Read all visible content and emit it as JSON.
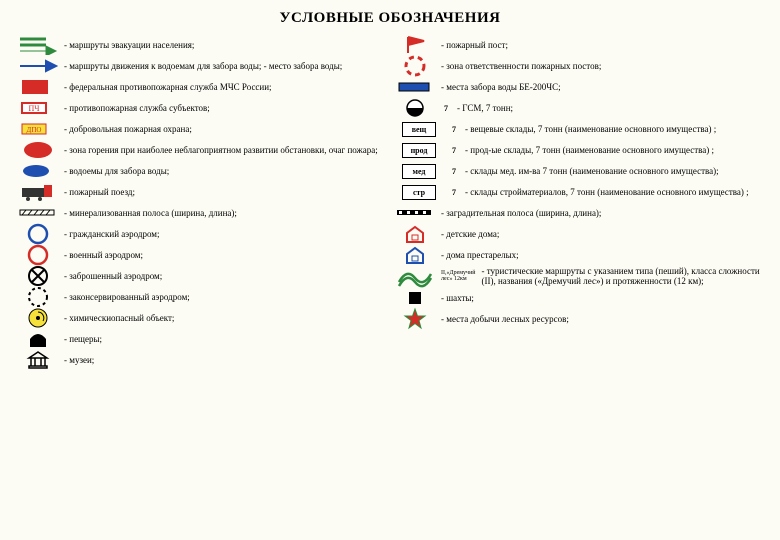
{
  "title": "УСЛОВНЫЕ ОБОЗНАЧЕНИЯ",
  "colors": {
    "red": "#d62c27",
    "green": "#2e8b3d",
    "blue": "#1e4fb0",
    "yellow": "#f6e13b",
    "orange": "#e07b1f",
    "black": "#000",
    "bg": "#fcfcf4",
    "white": "#fff"
  },
  "left": [
    {
      "sym": "evac-arrow",
      "text": "- маршруты эвакуации населения;"
    },
    {
      "sym": "water-arrow",
      "text": "- маршруты движения к водоемам для забора воды;\n- место забора воды;"
    },
    {
      "sym": "fps-box",
      "text": "- федеральная противопожарная служба МЧС России;"
    },
    {
      "sym": "pch-box",
      "text": "- противопожарная служба субъектов;"
    },
    {
      "sym": "dpo-box",
      "text": "- добровольная пожарная охрана;"
    },
    {
      "sym": "fire-zone",
      "text": "- зона горения при наиболее неблагоприятном развитии обстановки, очаг пожара;"
    },
    {
      "sym": "pond",
      "text": "- водоемы для забора воды;"
    },
    {
      "sym": "train",
      "text": "- пожарный поезд;"
    },
    {
      "sym": "mineral",
      "text": "- минерализованная полоса (ширина, длина);"
    },
    {
      "sym": "circle-blue",
      "text": "- гражданский аэродром;"
    },
    {
      "sym": "circle-red",
      "text": "- военный аэродром;"
    },
    {
      "sym": "circle-cross",
      "text": "- заброшенный аэродром;"
    },
    {
      "sym": "circle-dashed",
      "text": "- законсервированный аэродром;"
    },
    {
      "sym": "chem",
      "text": "- химическиопасный объект;"
    },
    {
      "sym": "cave",
      "text": "- пещеры;"
    },
    {
      "sym": "museum",
      "text": "- музеи;"
    }
  ],
  "right": [
    {
      "sym": "fire-post",
      "text": "- пожарный пост;"
    },
    {
      "sym": "resp-zone",
      "text": "- зона ответственности пожарных постов;"
    },
    {
      "sym": "be200",
      "text": "- места забора воды БЕ-200ЧС;"
    },
    {
      "sym": "gsm",
      "tagn": "7",
      "text": "- ГСМ, 7 тонн;"
    },
    {
      "sym": "tag",
      "tagv": "вещ",
      "tagn": "7",
      "text": "- вещевые склады, 7 тонн (наименование основного имущества) ;"
    },
    {
      "sym": "tag",
      "tagv": "прод",
      "tagn": "7",
      "text": "- прод-ые склады, 7 тонн (наименование основного имущества) ;"
    },
    {
      "sym": "tag",
      "tagv": "мед",
      "tagn": "7",
      "text": "- склады мед. им-ва 7 тонн (наименование основного имущества);"
    },
    {
      "sym": "tag",
      "tagv": "стр",
      "tagn": "7",
      "text": "- склады стройматериалов, 7 тонн (наименование основного имущества) ;"
    },
    {
      "sym": "barrier",
      "text": "- заградительная полоса (ширина, длина);"
    },
    {
      "sym": "house-red",
      "text": "- детские дома;"
    },
    {
      "sym": "house-blue",
      "text": "- дома престарелых;"
    },
    {
      "sym": "route",
      "caption": "II,«Дремучий лес»\n12км",
      "text": "- туристические маршруты с указанием типа (пеший), класса сложности (II), названия («Дремучий лес») и протяженности (12 км);"
    },
    {
      "sym": "mine",
      "text": "- шахты;"
    },
    {
      "sym": "star",
      "text": "- места добычи лесных ресурсов;"
    }
  ]
}
